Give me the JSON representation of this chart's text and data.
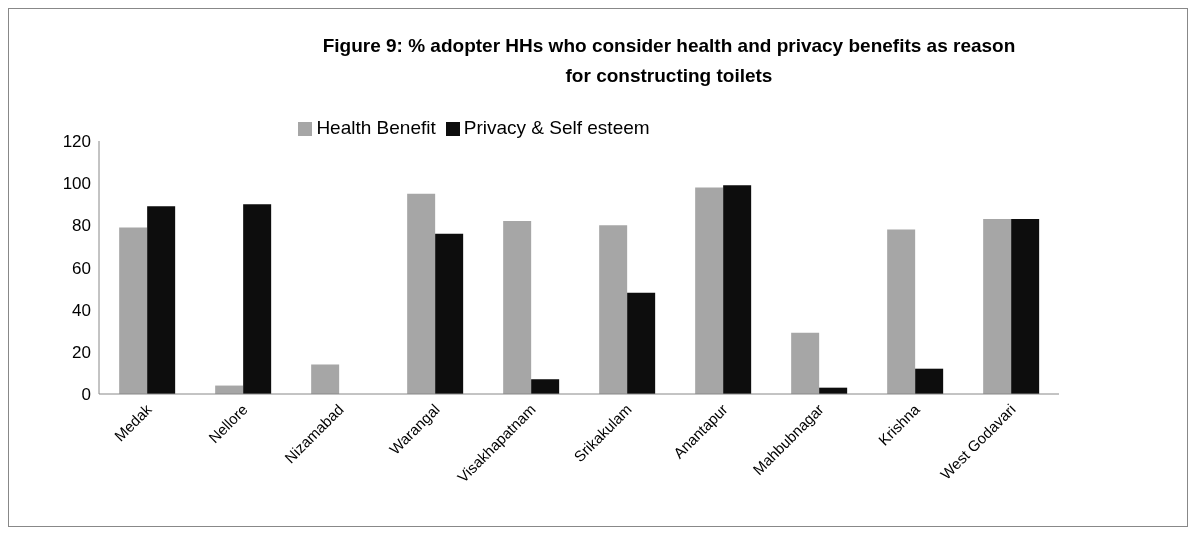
{
  "chart_data": {
    "type": "bar",
    "title": "Figure 9: % adopter HHs who consider health and privacy benefits as reason for constructing toilets",
    "categories": [
      "Medak",
      "Nellore",
      "Nizamabad",
      "Warangal",
      "Visakhapatnam",
      "Srikakulam",
      "Anantapur",
      "Mahbubnagar",
      "Krishna",
      "West Godavari"
    ],
    "series": [
      {
        "name": "Health Benefit",
        "color": "#a6a6a6",
        "values": [
          79,
          4,
          14,
          95,
          82,
          80,
          98,
          29,
          78,
          83
        ]
      },
      {
        "name": "Privacy & Self esteem",
        "color": "#0d0d0d",
        "values": [
          89,
          90,
          0,
          76,
          7,
          48,
          99,
          3,
          12,
          83
        ]
      }
    ],
    "ylim": [
      0,
      120
    ],
    "yticks": [
      0,
      20,
      40,
      60,
      80,
      100,
      120
    ],
    "grid": false,
    "legend": "top"
  }
}
